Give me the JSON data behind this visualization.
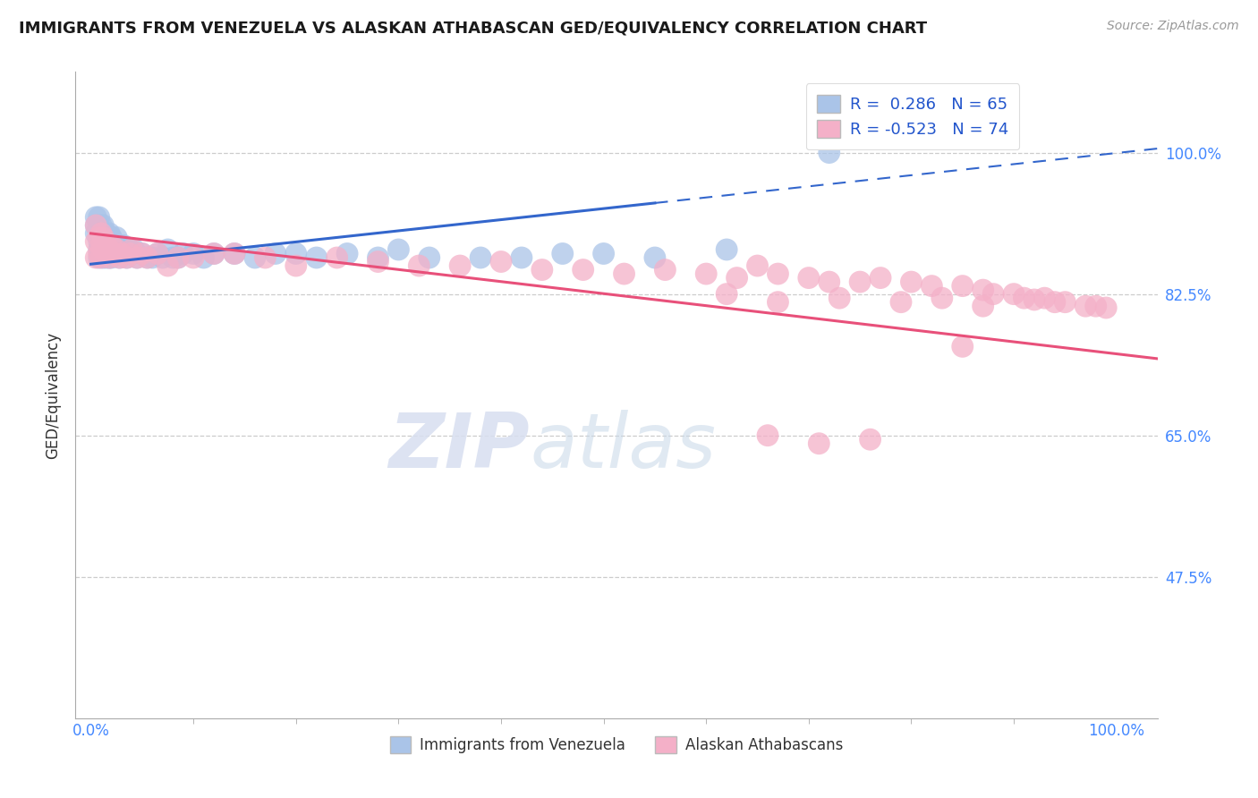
{
  "title": "IMMIGRANTS FROM VENEZUELA VS ALASKAN ATHABASCAN GED/EQUIVALENCY CORRELATION CHART",
  "source": "Source: ZipAtlas.com",
  "ylabel": "GED/Equivalency",
  "blue_R": 0.286,
  "blue_N": 65,
  "pink_R": -0.523,
  "pink_N": 74,
  "watermark_zip": "ZIP",
  "watermark_atlas": "atlas",
  "blue_color": "#aac4e8",
  "pink_color": "#f4b0c8",
  "blue_line_color": "#3366cc",
  "pink_line_color": "#e8507a",
  "background_color": "#ffffff",
  "grid_color": "#cccccc",
  "ytick_positions": [
    0.475,
    0.65,
    0.825,
    1.0
  ],
  "ytick_labels": [
    "47.5%",
    "65.0%",
    "82.5%",
    "100.0%"
  ],
  "blue_points_x": [
    0.005,
    0.005,
    0.005,
    0.008,
    0.008,
    0.008,
    0.008,
    0.01,
    0.01,
    0.01,
    0.012,
    0.012,
    0.012,
    0.012,
    0.015,
    0.015,
    0.015,
    0.015,
    0.018,
    0.018,
    0.018,
    0.02,
    0.02,
    0.02,
    0.022,
    0.022,
    0.025,
    0.025,
    0.028,
    0.028,
    0.03,
    0.032,
    0.035,
    0.038,
    0.04,
    0.042,
    0.045,
    0.05,
    0.055,
    0.06,
    0.065,
    0.07,
    0.075,
    0.08,
    0.085,
    0.09,
    0.1,
    0.11,
    0.12,
    0.14,
    0.16,
    0.18,
    0.2,
    0.22,
    0.25,
    0.28,
    0.3,
    0.33,
    0.38,
    0.42,
    0.46,
    0.5,
    0.55,
    0.62,
    0.72
  ],
  "blue_points_y": [
    0.9,
    0.91,
    0.92,
    0.87,
    0.88,
    0.89,
    0.92,
    0.9,
    0.91,
    0.88,
    0.87,
    0.88,
    0.895,
    0.91,
    0.885,
    0.87,
    0.895,
    0.9,
    0.87,
    0.89,
    0.9,
    0.87,
    0.88,
    0.895,
    0.875,
    0.89,
    0.875,
    0.895,
    0.88,
    0.87,
    0.88,
    0.885,
    0.87,
    0.88,
    0.875,
    0.88,
    0.87,
    0.875,
    0.87,
    0.87,
    0.875,
    0.87,
    0.88,
    0.87,
    0.87,
    0.875,
    0.875,
    0.87,
    0.875,
    0.875,
    0.87,
    0.875,
    0.875,
    0.87,
    0.875,
    0.87,
    0.88,
    0.87,
    0.87,
    0.87,
    0.875,
    0.875,
    0.87,
    0.88,
    1.0
  ],
  "pink_points_x": [
    0.005,
    0.005,
    0.005,
    0.008,
    0.008,
    0.01,
    0.01,
    0.01,
    0.012,
    0.012,
    0.015,
    0.015,
    0.018,
    0.018,
    0.02,
    0.022,
    0.025,
    0.028,
    0.03,
    0.035,
    0.038,
    0.04,
    0.045,
    0.05,
    0.055,
    0.065,
    0.075,
    0.085,
    0.1,
    0.12,
    0.14,
    0.17,
    0.2,
    0.24,
    0.28,
    0.32,
    0.36,
    0.4,
    0.44,
    0.48,
    0.52,
    0.56,
    0.6,
    0.63,
    0.65,
    0.67,
    0.7,
    0.72,
    0.75,
    0.77,
    0.8,
    0.82,
    0.85,
    0.87,
    0.88,
    0.9,
    0.91,
    0.92,
    0.93,
    0.94,
    0.95,
    0.97,
    0.98,
    0.99,
    0.62,
    0.67,
    0.73,
    0.79,
    0.83,
    0.87,
    0.66,
    0.71,
    0.76,
    0.85
  ],
  "pink_points_y": [
    0.87,
    0.89,
    0.91,
    0.875,
    0.895,
    0.885,
    0.9,
    0.87,
    0.88,
    0.895,
    0.875,
    0.885,
    0.87,
    0.88,
    0.885,
    0.875,
    0.88,
    0.87,
    0.875,
    0.87,
    0.875,
    0.88,
    0.87,
    0.875,
    0.87,
    0.875,
    0.86,
    0.87,
    0.87,
    0.875,
    0.875,
    0.87,
    0.86,
    0.87,
    0.865,
    0.86,
    0.86,
    0.865,
    0.855,
    0.855,
    0.85,
    0.855,
    0.85,
    0.845,
    0.86,
    0.85,
    0.845,
    0.84,
    0.84,
    0.845,
    0.84,
    0.835,
    0.835,
    0.83,
    0.825,
    0.825,
    0.82,
    0.818,
    0.82,
    0.815,
    0.815,
    0.81,
    0.81,
    0.808,
    0.825,
    0.815,
    0.82,
    0.815,
    0.82,
    0.81,
    0.65,
    0.64,
    0.645,
    0.76
  ]
}
